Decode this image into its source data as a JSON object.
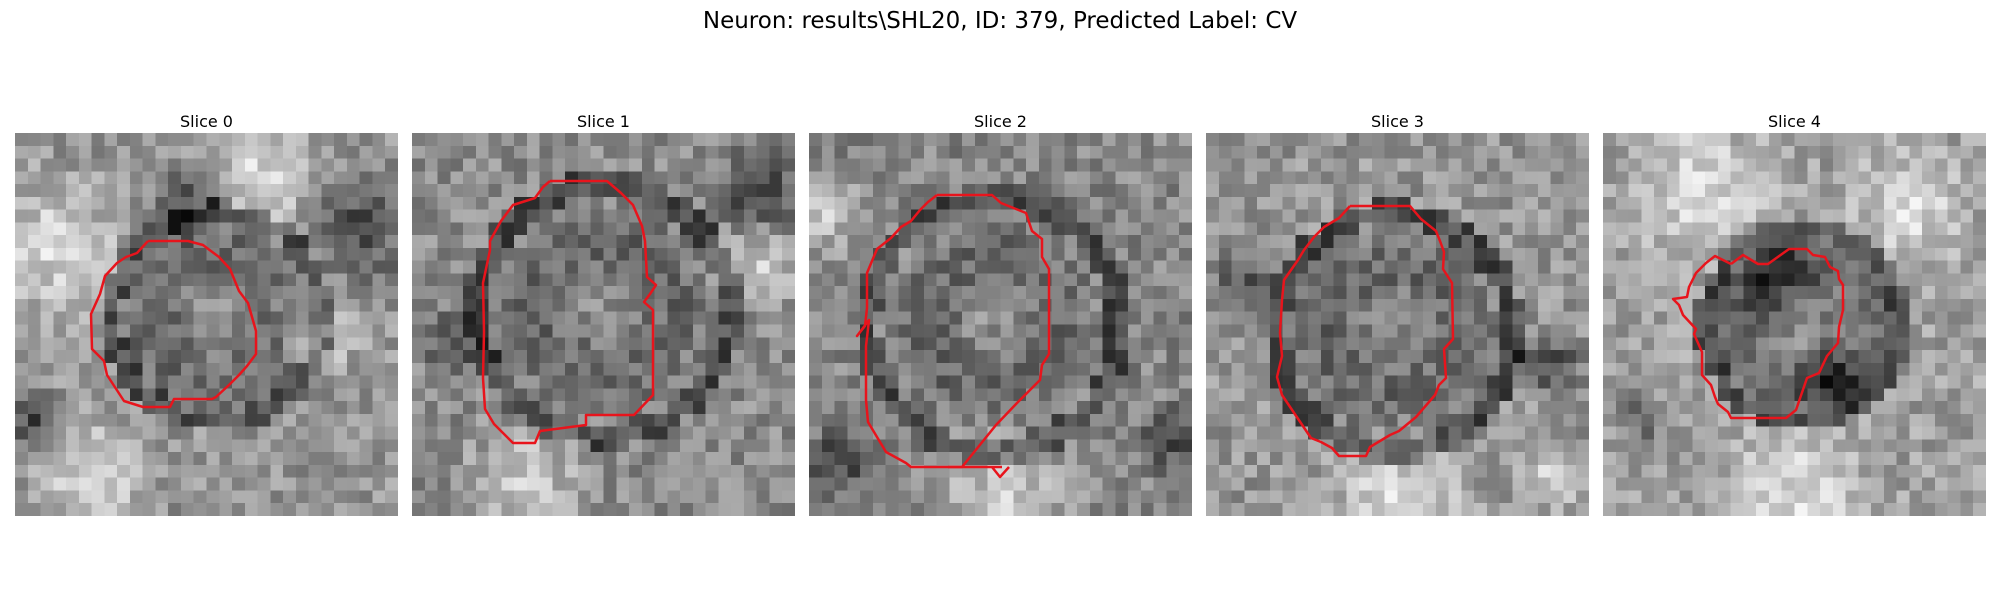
{
  "figure": {
    "title": "Neuron: results\\SHL20, ID: 379, Predicted Label: CV"
  },
  "contour_color": "#e8141c",
  "panels": [
    {
      "title": "Slice 0"
    },
    {
      "title": "Slice 1"
    },
    {
      "title": "Slice 2"
    },
    {
      "title": "Slice 3"
    },
    {
      "title": "Slice 4"
    }
  ]
}
